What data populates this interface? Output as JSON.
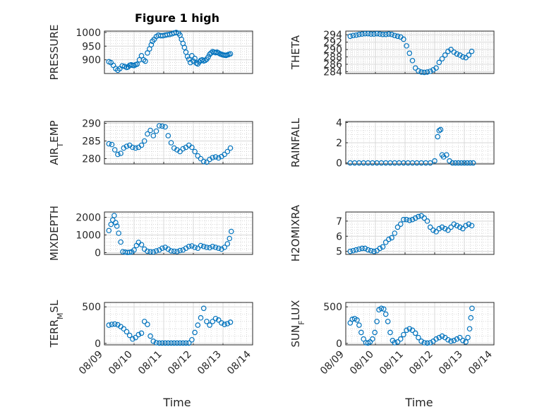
{
  "colors": {
    "marker": "#0072BD",
    "axis": "#262626"
  },
  "figure_title": "Figure 1 high",
  "chart_data": [
    {
      "type": "scatter",
      "ylabel": "PRESSURE",
      "ylim": [
        850,
        1005
      ],
      "yticks": [
        900,
        950,
        1000
      ],
      "xlim": [
        0,
        5
      ],
      "xticks": [
        "08/09",
        "08/10",
        "08/11",
        "08/12",
        "08/13",
        "08/14"
      ],
      "x": [
        0.15,
        0.22,
        0.3,
        0.38,
        0.45,
        0.52,
        0.6,
        0.68,
        0.75,
        0.8,
        0.85,
        0.9,
        0.95,
        1.0,
        1.05,
        1.1,
        1.18,
        1.25,
        1.32,
        1.38,
        1.45,
        1.52,
        1.58,
        1.62,
        1.68,
        1.75,
        1.82,
        1.9,
        1.97,
        2.05,
        2.12,
        2.2,
        2.28,
        2.35,
        2.42,
        2.5,
        2.55,
        2.6,
        2.65,
        2.7,
        2.75,
        2.8,
        2.85,
        2.9,
        2.95,
        3.0,
        3.05,
        3.1,
        3.15,
        3.2,
        3.25,
        3.3,
        3.35,
        3.4,
        3.45,
        3.5,
        3.55,
        3.6,
        3.65,
        3.7,
        3.75,
        3.8,
        3.85,
        3.9,
        3.95,
        4.0,
        4.05,
        4.1,
        4.15,
        4.2,
        4.25
      ],
      "y": [
        893,
        890,
        880,
        868,
        862,
        868,
        878,
        876,
        872,
        874,
        880,
        882,
        880,
        879,
        882,
        884,
        900,
        915,
        900,
        895,
        925,
        940,
        955,
        968,
        975,
        985,
        990,
        988,
        988,
        990,
        992,
        993,
        995,
        998,
        1000,
        997,
        990,
        975,
        960,
        945,
        928,
        912,
        902,
        890,
        915,
        895,
        905,
        888,
        885,
        892,
        898,
        900,
        896,
        898,
        902,
        910,
        920,
        925,
        930,
        928,
        926,
        928,
        925,
        922,
        920,
        918,
        917,
        916,
        918,
        920,
        922
      ]
    },
    {
      "type": "scatter",
      "ylabel": "THETA",
      "ylim": [
        283.5,
        295
      ],
      "yticks": [
        284,
        286,
        288,
        290,
        292,
        294
      ],
      "xlim": [
        0,
        5
      ],
      "xticks": [
        "08/09",
        "08/10",
        "08/11",
        "08/12",
        "08/13",
        "08/14"
      ],
      "x": [
        0.15,
        0.25,
        0.35,
        0.45,
        0.55,
        0.65,
        0.75,
        0.85,
        0.95,
        1.05,
        1.15,
        1.25,
        1.35,
        1.45,
        1.55,
        1.65,
        1.75,
        1.85,
        1.95,
        2.05,
        2.15,
        2.25,
        2.35,
        2.45,
        2.55,
        2.65,
        2.75,
        2.85,
        2.95,
        3.05,
        3.15,
        3.25,
        3.35,
        3.45,
        3.55,
        3.65,
        3.75,
        3.85,
        3.95,
        4.05,
        4.15,
        4.25
      ],
      "y": [
        293.6,
        293.8,
        293.9,
        294.1,
        294.2,
        294.3,
        294.3,
        294.2,
        294.2,
        294.3,
        294.2,
        294.1,
        294.1,
        294.2,
        294.1,
        293.8,
        293.6,
        293.4,
        292.8,
        291,
        289,
        287,
        285,
        284.2,
        283.9,
        283.8,
        283.9,
        284.1,
        284.5,
        285,
        286.5,
        287.5,
        288.5,
        289.5,
        290,
        289.3,
        288.8,
        288.5,
        288,
        287.8,
        288.5,
        289.5
      ]
    },
    {
      "type": "scatter",
      "ylabel": "AIR_TEMP",
      "ylim": [
        278.5,
        290.5
      ],
      "yticks": [
        280,
        285,
        290
      ],
      "xlim": [
        0,
        5
      ],
      "xticks": [
        "08/09",
        "08/10",
        "08/11",
        "08/12",
        "08/13",
        "08/14"
      ],
      "x": [
        0.15,
        0.25,
        0.35,
        0.45,
        0.55,
        0.65,
        0.75,
        0.85,
        0.95,
        1.05,
        1.15,
        1.25,
        1.35,
        1.45,
        1.55,
        1.65,
        1.75,
        1.85,
        1.95,
        2.05,
        2.15,
        2.25,
        2.35,
        2.45,
        2.55,
        2.65,
        2.75,
        2.85,
        2.95,
        3.05,
        3.15,
        3.25,
        3.35,
        3.45,
        3.55,
        3.65,
        3.75,
        3.85,
        3.95,
        4.05,
        4.15,
        4.25
      ],
      "y": [
        284.2,
        284,
        282.5,
        281.2,
        281.5,
        283,
        283.5,
        283.8,
        283.2,
        283,
        283.2,
        283.8,
        285,
        287,
        288,
        286.5,
        287.8,
        289.3,
        289.2,
        289,
        286.5,
        284.5,
        283,
        282.5,
        282,
        282.8,
        283.2,
        283.8,
        283.2,
        282,
        280.8,
        280,
        279.2,
        279,
        279.8,
        280.3,
        280.5,
        280.2,
        280.6,
        281.2,
        282,
        283
      ]
    },
    {
      "type": "scatter",
      "ylabel": "RAINFALL",
      "ylim": [
        -0.1,
        4.1
      ],
      "yticks": [
        0,
        2,
        4
      ],
      "xlim": [
        0,
        5
      ],
      "xticks": [
        "08/09",
        "08/10",
        "08/11",
        "08/12",
        "08/13",
        "08/14"
      ],
      "x": [
        0.15,
        0.3,
        0.45,
        0.6,
        0.75,
        0.9,
        1.05,
        1.2,
        1.35,
        1.5,
        1.65,
        1.8,
        1.95,
        2.1,
        2.25,
        2.4,
        2.55,
        2.7,
        2.85,
        3.0,
        3.1,
        3.15,
        3.2,
        3.25,
        3.3,
        3.4,
        3.5,
        3.6,
        3.7,
        3.8,
        3.9,
        4.0,
        4.1,
        4.2,
        4.3
      ],
      "y": [
        0,
        0,
        0,
        0,
        0,
        0,
        0,
        0,
        0,
        0,
        0,
        0,
        0,
        0,
        0,
        0,
        0,
        0,
        0,
        0.2,
        2.6,
        3.2,
        3.3,
        0.8,
        0.6,
        0.8,
        0.2,
        0,
        0,
        0,
        0,
        0,
        0,
        0,
        0
      ]
    },
    {
      "type": "scatter",
      "ylabel": "MIXDEPTH",
      "ylim": [
        -100,
        2300
      ],
      "yticks": [
        0,
        1000,
        2000
      ],
      "xlim": [
        0,
        5
      ],
      "xticks": [
        "08/09",
        "08/10",
        "08/11",
        "08/12",
        "08/13",
        "08/14"
      ],
      "x": [
        0.15,
        0.22,
        0.28,
        0.33,
        0.38,
        0.42,
        0.48,
        0.55,
        0.62,
        0.7,
        0.78,
        0.85,
        0.92,
        1.0,
        1.08,
        1.15,
        1.25,
        1.35,
        1.45,
        1.55,
        1.65,
        1.75,
        1.85,
        1.95,
        2.05,
        2.15,
        2.25,
        2.35,
        2.45,
        2.55,
        2.65,
        2.75,
        2.85,
        2.95,
        3.05,
        3.15,
        3.25,
        3.35,
        3.45,
        3.55,
        3.65,
        3.75,
        3.85,
        3.95,
        4.05,
        4.15,
        4.22,
        4.28
      ],
      "y": [
        1250,
        1600,
        1850,
        2100,
        1700,
        1500,
        1100,
        600,
        50,
        30,
        10,
        20,
        40,
        150,
        400,
        580,
        450,
        200,
        80,
        50,
        40,
        100,
        150,
        250,
        300,
        200,
        100,
        80,
        60,
        120,
        150,
        250,
        350,
        380,
        300,
        250,
        400,
        350,
        300,
        280,
        350,
        300,
        250,
        200,
        300,
        500,
        800,
        1200
      ]
    },
    {
      "type": "scatter",
      "ylabel": "H2OMIXRA",
      "ylim": [
        4.8,
        7.6
      ],
      "yticks": [
        5,
        6,
        7
      ],
      "xlim": [
        0,
        5
      ],
      "xticks": [
        "08/09",
        "08/10",
        "08/11",
        "08/12",
        "08/13",
        "08/14"
      ],
      "x": [
        0.15,
        0.25,
        0.35,
        0.45,
        0.55,
        0.65,
        0.75,
        0.85,
        0.95,
        1.05,
        1.15,
        1.25,
        1.35,
        1.45,
        1.55,
        1.65,
        1.75,
        1.85,
        1.95,
        2.05,
        2.15,
        2.25,
        2.35,
        2.45,
        2.55,
        2.65,
        2.75,
        2.85,
        2.95,
        3.05,
        3.15,
        3.25,
        3.35,
        3.45,
        3.55,
        3.65,
        3.75,
        3.85,
        3.95,
        4.05,
        4.15,
        4.25
      ],
      "y": [
        5,
        5.05,
        5.1,
        5.15,
        5.2,
        5.2,
        5.1,
        5.05,
        5,
        5.05,
        5.2,
        5.3,
        5.6,
        5.8,
        5.9,
        6.2,
        6.6,
        6.8,
        7.1,
        7.1,
        7.05,
        7.1,
        7.2,
        7.3,
        7.35,
        7.2,
        7,
        6.6,
        6.4,
        6.3,
        6.5,
        6.6,
        6.5,
        6.4,
        6.6,
        6.8,
        6.7,
        6.6,
        6.5,
        6.7,
        6.8,
        6.7
      ]
    },
    {
      "type": "scatter",
      "ylabel": "TERR_MSL",
      "ylim": [
        -20,
        560
      ],
      "yticks": [
        0,
        500
      ],
      "xlim": [
        0,
        5
      ],
      "xticks": [
        "08/09",
        "08/10",
        "08/11",
        "08/12",
        "08/13",
        "08/14"
      ],
      "x": [
        0.15,
        0.25,
        0.35,
        0.45,
        0.55,
        0.65,
        0.75,
        0.85,
        0.95,
        1.05,
        1.15,
        1.25,
        1.35,
        1.45,
        1.55,
        1.65,
        1.75,
        1.85,
        1.95,
        2.05,
        2.15,
        2.25,
        2.35,
        2.45,
        2.55,
        2.65,
        2.75,
        2.85,
        2.95,
        3.05,
        3.15,
        3.25,
        3.35,
        3.45,
        3.55,
        3.65,
        3.75,
        3.85,
        3.95,
        4.05,
        4.15,
        4.25
      ],
      "y": [
        250,
        260,
        265,
        255,
        230,
        200,
        160,
        110,
        60,
        80,
        120,
        140,
        300,
        260,
        100,
        30,
        10,
        5,
        5,
        5,
        5,
        5,
        5,
        5,
        5,
        5,
        5,
        5,
        50,
        150,
        250,
        350,
        480,
        300,
        250,
        300,
        340,
        320,
        280,
        260,
        270,
        290
      ]
    },
    {
      "type": "scatter",
      "ylabel": "SUN_FLUX",
      "ylim": [
        -20,
        560
      ],
      "yticks": [
        0,
        500
      ],
      "xlim": [
        0,
        5
      ],
      "xticks": [
        "08/09",
        "08/10",
        "08/11",
        "08/12",
        "08/13",
        "08/14"
      ],
      "x": [
        0.15,
        0.22,
        0.3,
        0.38,
        0.45,
        0.52,
        0.6,
        0.68,
        0.75,
        0.82,
        0.9,
        0.98,
        1.05,
        1.12,
        1.2,
        1.28,
        1.35,
        1.42,
        1.5,
        1.58,
        1.65,
        1.75,
        1.85,
        1.95,
        2.05,
        2.15,
        2.25,
        2.35,
        2.45,
        2.55,
        2.65,
        2.75,
        2.85,
        2.95,
        3.05,
        3.15,
        3.25,
        3.35,
        3.45,
        3.55,
        3.65,
        3.75,
        3.85,
        3.95,
        4.05,
        4.12,
        4.18,
        4.22,
        4.26
      ],
      "y": [
        280,
        330,
        340,
        320,
        250,
        150,
        60,
        10,
        5,
        20,
        60,
        150,
        300,
        460,
        480,
        470,
        400,
        300,
        150,
        40,
        10,
        20,
        60,
        120,
        180,
        200,
        180,
        140,
        80,
        30,
        10,
        5,
        10,
        30,
        60,
        80,
        100,
        80,
        50,
        30,
        40,
        60,
        80,
        40,
        20,
        80,
        200,
        350,
        480
      ]
    }
  ],
  "xlabel": "Time"
}
